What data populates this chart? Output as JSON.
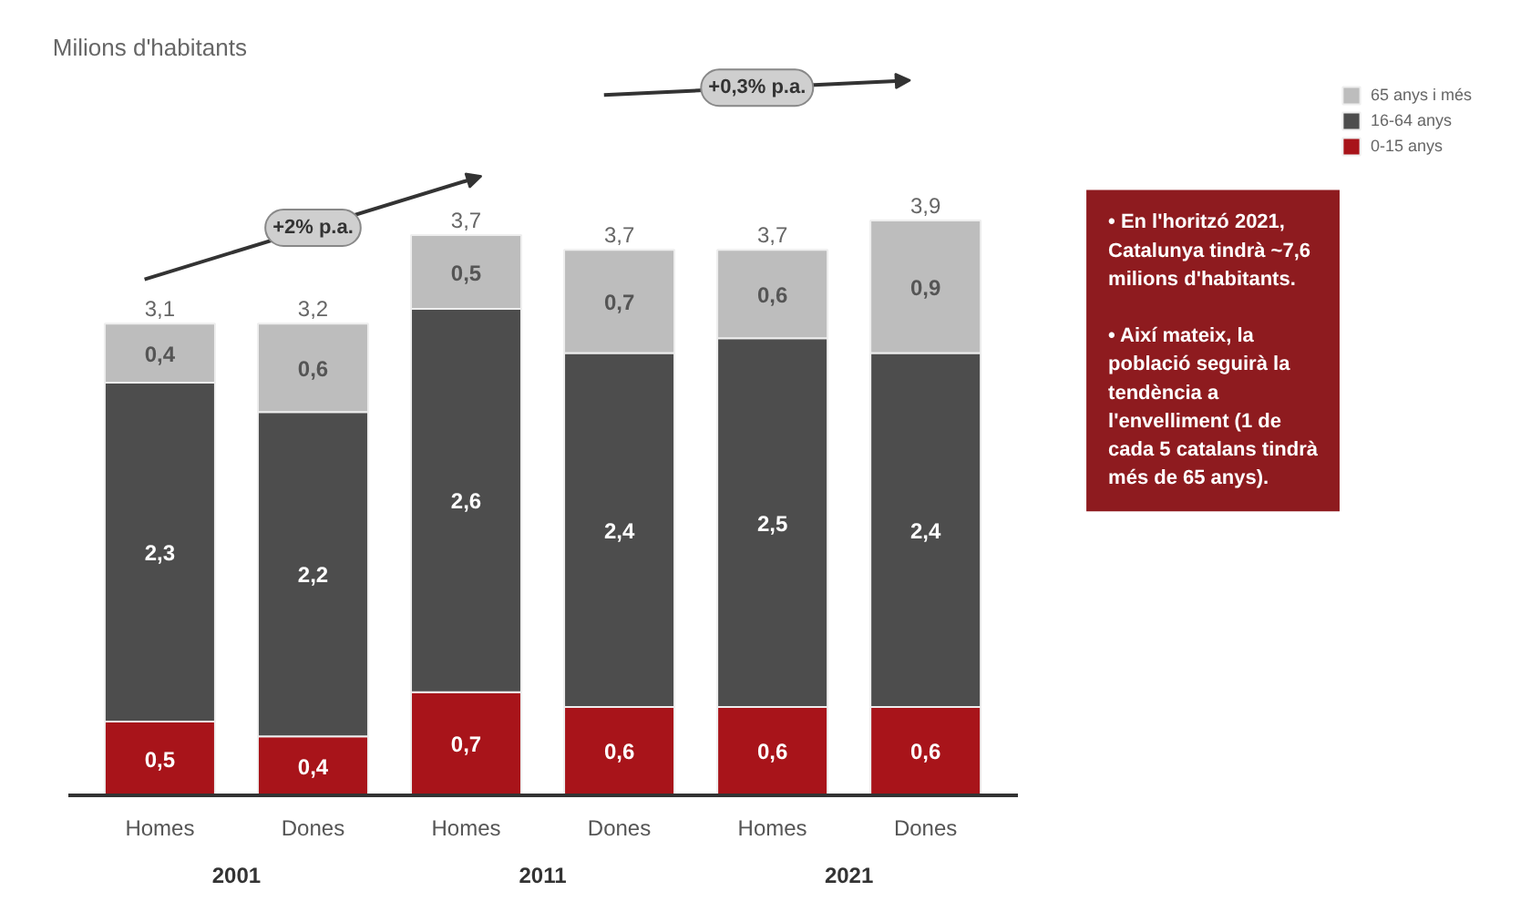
{
  "chart_data": {
    "type": "bar",
    "stacked": true,
    "title": "Milions d'habitants",
    "categories": [
      "Homes",
      "Dones",
      "Homes",
      "Dones",
      "Homes",
      "Dones"
    ],
    "series": [
      {
        "name": "0-15 anys",
        "color": "#a8141a",
        "values": [
          0.5,
          0.4,
          0.7,
          0.6,
          0.6,
          0.6
        ],
        "value_labels": [
          "0,5",
          "0,4",
          "0,7",
          "0,6",
          "0,6",
          "0,6"
        ]
      },
      {
        "name": "16-64 anys",
        "color": "#4d4d4d",
        "values": [
          2.3,
          2.2,
          2.6,
          2.4,
          2.5,
          2.4
        ],
        "value_labels": [
          "2,3",
          "2,2",
          "2,6",
          "2,4",
          "2,5",
          "2,4"
        ]
      },
      {
        "name": "65 anys i més",
        "color": "#bdbdbd",
        "values": [
          0.4,
          0.6,
          0.5,
          0.7,
          0.6,
          0.9
        ],
        "value_labels": [
          "0,4",
          "0,6",
          "0,5",
          "0,7",
          "0,6",
          "0,9"
        ]
      }
    ],
    "totals": [
      "3,1",
      "3,2",
      "3,7",
      "3,7",
      "3,7",
      "3,9"
    ],
    "annotations": [
      "2001",
      "2011",
      "2021",
      "+2% p.a.",
      "+0,3% p.a.",
      "• En l'horitzó 2021, Catalunya tindrà ~7,6 milions d'habitants.",
      "• Així mateix, la població seguirà la tendència a l'envelliment (1 de cada 5 catalans tindrà més de 65 anys)."
    ],
    "grid": false,
    "legend": "top right"
  }
}
